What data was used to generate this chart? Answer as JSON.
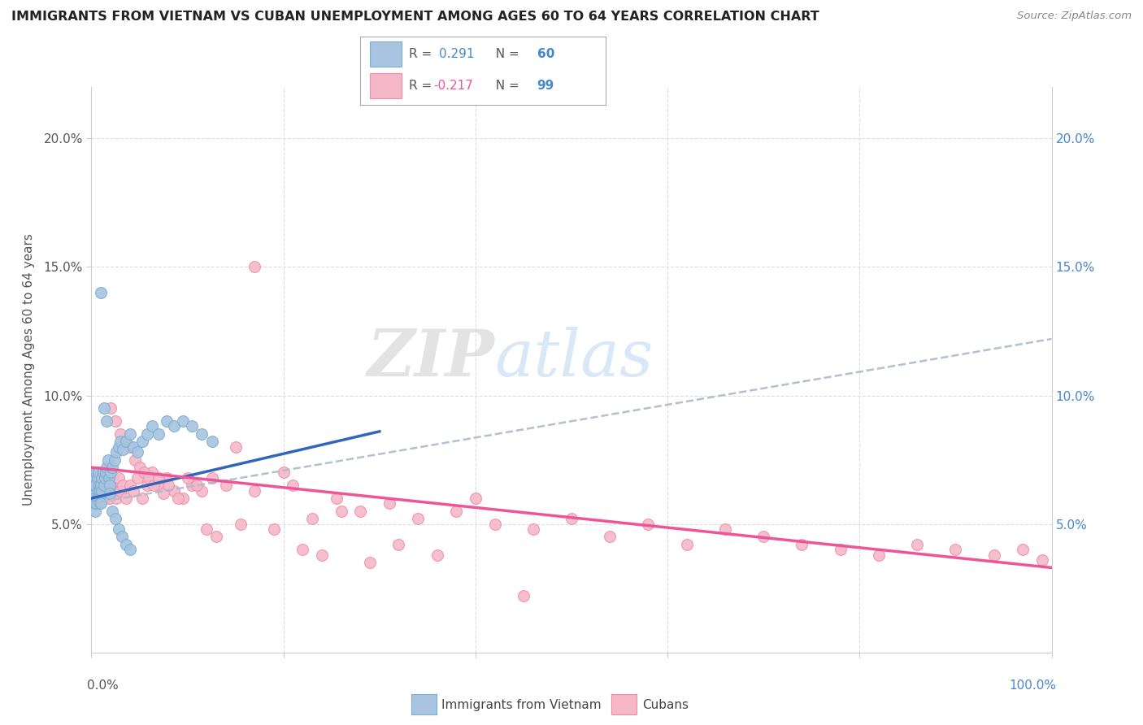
{
  "title": "IMMIGRANTS FROM VIETNAM VS CUBAN UNEMPLOYMENT AMONG AGES 60 TO 64 YEARS CORRELATION CHART",
  "source": "Source: ZipAtlas.com",
  "ylabel": "Unemployment Among Ages 60 to 64 years",
  "vietnam_color": "#a8c4e0",
  "cuba_color": "#f4b8c8",
  "vietnam_edge": "#7aafd4",
  "cuba_edge": "#f090a8",
  "trend_vietnam_color": "#3366bb",
  "trend_cuba_color": "#ee5599",
  "trend_dash_color": "#aabbcc",
  "watermark_zip": "ZIP",
  "watermark_atlas": "atlas",
  "xlim": [
    0.0,
    1.0
  ],
  "ylim": [
    0.0,
    0.22
  ],
  "ytick_vals": [
    0.05,
    0.1,
    0.15,
    0.2
  ],
  "ytick_labels": [
    "5.0%",
    "10.0%",
    "15.0%",
    "20.0%"
  ],
  "vietnam_trend_x": [
    0.0,
    0.3
  ],
  "vietnam_trend_y": [
    0.06,
    0.086
  ],
  "cuba_trend_x": [
    0.0,
    1.0
  ],
  "cuba_trend_y": [
    0.072,
    0.033
  ],
  "dash_trend_x": [
    0.0,
    1.0
  ],
  "dash_trend_y": [
    0.058,
    0.122
  ],
  "vietnam_pts_x": [
    0.001,
    0.002,
    0.002,
    0.003,
    0.003,
    0.004,
    0.004,
    0.005,
    0.005,
    0.006,
    0.006,
    0.007,
    0.007,
    0.008,
    0.008,
    0.009,
    0.009,
    0.01,
    0.01,
    0.011,
    0.011,
    0.012,
    0.013,
    0.014,
    0.015,
    0.016,
    0.017,
    0.018,
    0.019,
    0.02,
    0.022,
    0.024,
    0.026,
    0.028,
    0.03,
    0.033,
    0.036,
    0.04,
    0.044,
    0.048,
    0.053,
    0.058,
    0.063,
    0.07,
    0.078,
    0.086,
    0.095,
    0.105,
    0.115,
    0.126,
    0.01,
    0.013,
    0.016,
    0.019,
    0.022,
    0.025,
    0.028,
    0.032,
    0.036,
    0.04
  ],
  "vietnam_pts_y": [
    0.062,
    0.058,
    0.065,
    0.06,
    0.068,
    0.055,
    0.065,
    0.058,
    0.07,
    0.06,
    0.068,
    0.063,
    0.07,
    0.065,
    0.06,
    0.058,
    0.063,
    0.065,
    0.058,
    0.068,
    0.063,
    0.07,
    0.065,
    0.068,
    0.07,
    0.072,
    0.075,
    0.068,
    0.065,
    0.07,
    0.072,
    0.075,
    0.078,
    0.08,
    0.082,
    0.079,
    0.082,
    0.085,
    0.08,
    0.078,
    0.082,
    0.085,
    0.088,
    0.085,
    0.09,
    0.088,
    0.09,
    0.088,
    0.085,
    0.082,
    0.14,
    0.095,
    0.09,
    0.062,
    0.055,
    0.052,
    0.048,
    0.045,
    0.042,
    0.04
  ],
  "cuba_pts_x": [
    0.001,
    0.002,
    0.003,
    0.004,
    0.005,
    0.006,
    0.007,
    0.008,
    0.009,
    0.01,
    0.011,
    0.012,
    0.013,
    0.014,
    0.015,
    0.016,
    0.017,
    0.018,
    0.019,
    0.02,
    0.022,
    0.024,
    0.026,
    0.028,
    0.03,
    0.033,
    0.036,
    0.04,
    0.044,
    0.048,
    0.053,
    0.058,
    0.063,
    0.07,
    0.078,
    0.086,
    0.095,
    0.105,
    0.115,
    0.126,
    0.14,
    0.155,
    0.17,
    0.19,
    0.21,
    0.23,
    0.255,
    0.28,
    0.31,
    0.34,
    0.38,
    0.42,
    0.46,
    0.5,
    0.54,
    0.58,
    0.62,
    0.66,
    0.7,
    0.74,
    0.78,
    0.82,
    0.86,
    0.9,
    0.94,
    0.97,
    0.99,
    0.02,
    0.025,
    0.03,
    0.035,
    0.04,
    0.045,
    0.05,
    0.055,
    0.06,
    0.065,
    0.07,
    0.075,
    0.08,
    0.09,
    0.1,
    0.11,
    0.12,
    0.13,
    0.15,
    0.17,
    0.2,
    0.22,
    0.24,
    0.26,
    0.29,
    0.32,
    0.36,
    0.4,
    0.45
  ],
  "cuba_pts_y": [
    0.062,
    0.065,
    0.06,
    0.068,
    0.063,
    0.07,
    0.065,
    0.06,
    0.068,
    0.063,
    0.07,
    0.065,
    0.068,
    0.063,
    0.06,
    0.068,
    0.065,
    0.063,
    0.06,
    0.065,
    0.068,
    0.063,
    0.06,
    0.068,
    0.063,
    0.065,
    0.06,
    0.065,
    0.063,
    0.068,
    0.06,
    0.065,
    0.07,
    0.065,
    0.068,
    0.063,
    0.06,
    0.065,
    0.063,
    0.068,
    0.065,
    0.05,
    0.063,
    0.048,
    0.065,
    0.052,
    0.06,
    0.055,
    0.058,
    0.052,
    0.055,
    0.05,
    0.048,
    0.052,
    0.045,
    0.05,
    0.042,
    0.048,
    0.045,
    0.042,
    0.04,
    0.038,
    0.042,
    0.04,
    0.038,
    0.04,
    0.036,
    0.095,
    0.09,
    0.085,
    0.082,
    0.08,
    0.075,
    0.072,
    0.07,
    0.068,
    0.065,
    0.068,
    0.062,
    0.065,
    0.06,
    0.068,
    0.065,
    0.048,
    0.045,
    0.08,
    0.15,
    0.07,
    0.04,
    0.038,
    0.055,
    0.035,
    0.042,
    0.038,
    0.06,
    0.022
  ]
}
